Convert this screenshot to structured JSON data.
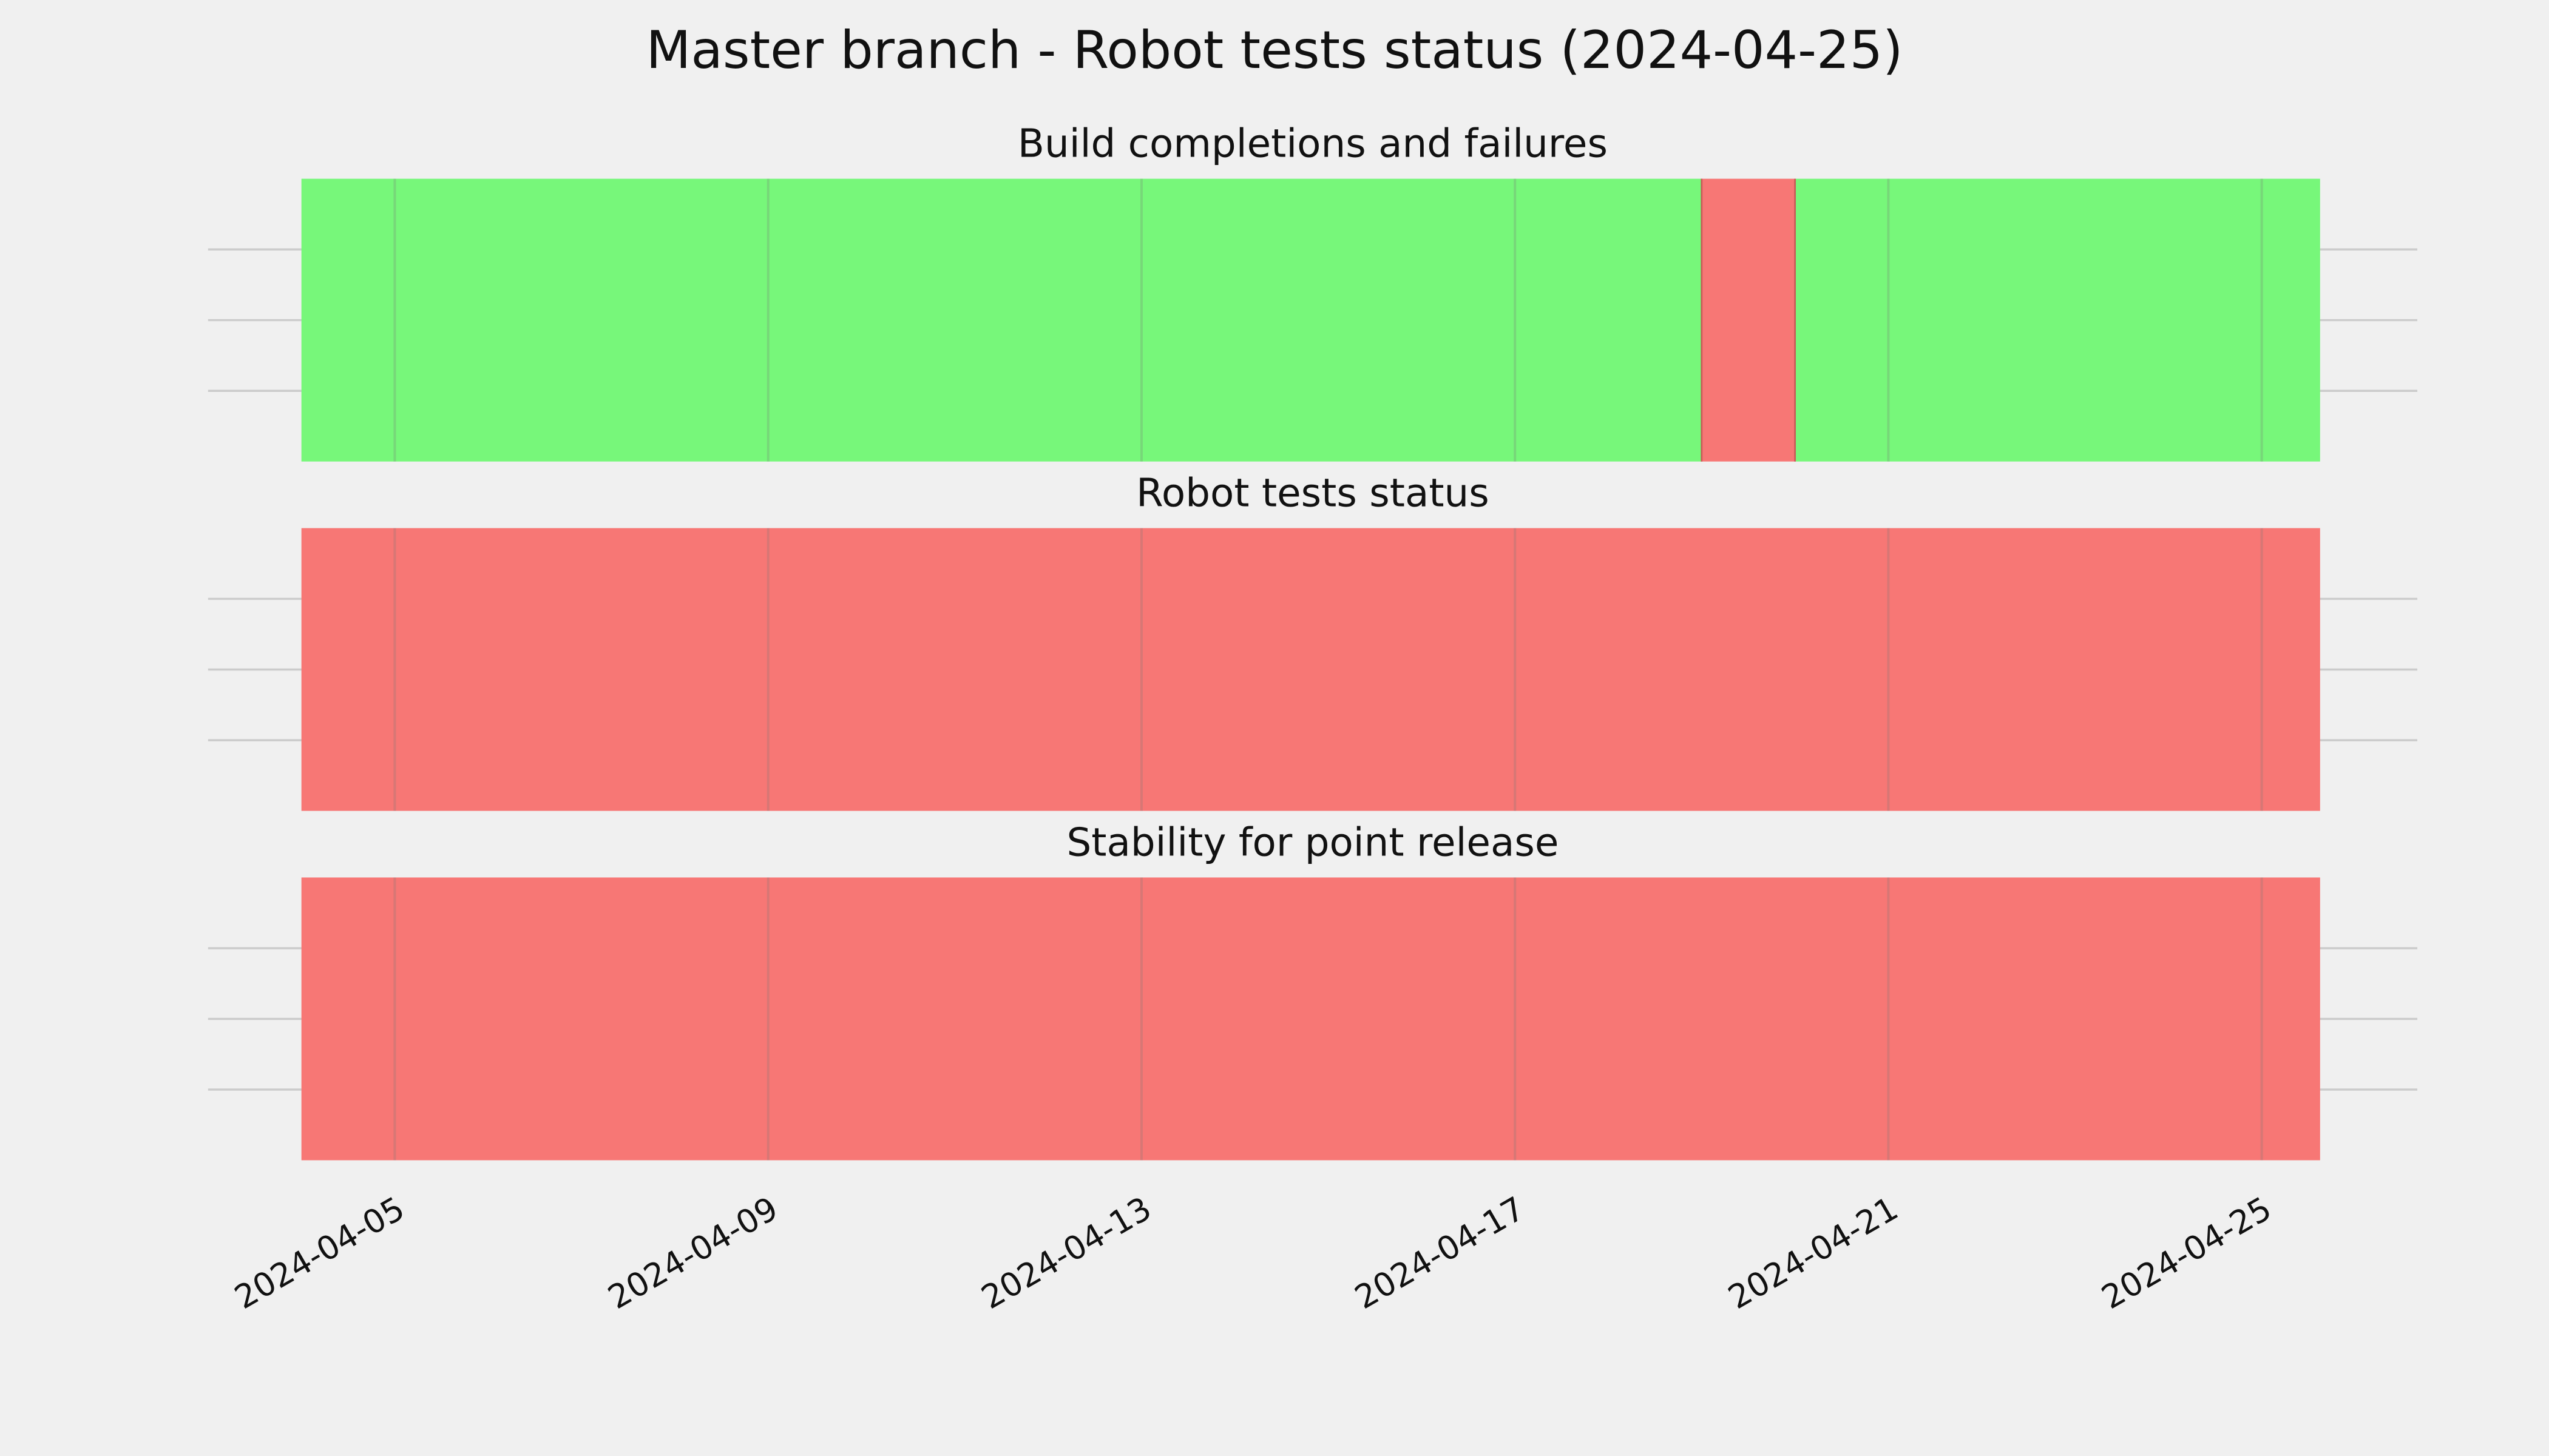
{
  "chart_data": {
    "type": "timeline",
    "title": "Master branch - Robot tests status (2024-04-25)",
    "xlim": [
      "2024-04-03",
      "2024-04-26T16:00"
    ],
    "xticks": [
      "2024-04-05",
      "2024-04-09",
      "2024-04-13",
      "2024-04-17",
      "2024-04-21",
      "2024-04-25"
    ],
    "ylim": [
      0,
      1
    ],
    "yticks": [
      0.25,
      0.5,
      0.75
    ],
    "grid": true,
    "panels": [
      {
        "subtitle": "Build completions and failures",
        "segments": [
          {
            "start": "2024-04-04",
            "end": "2024-04-19",
            "color": "#77f77a"
          },
          {
            "start": "2024-04-19",
            "end": "2024-04-20",
            "color": "#f77775"
          },
          {
            "start": "2024-04-20",
            "end": "2024-04-25T15:00",
            "color": "#77f77a"
          }
        ]
      },
      {
        "subtitle": "Robot tests status",
        "segments": [
          {
            "start": "2024-04-04",
            "end": "2024-04-25T15:00",
            "color": "#f77775"
          }
        ]
      },
      {
        "subtitle": "Stability for point release",
        "segments": [
          {
            "start": "2024-04-04",
            "end": "2024-04-25T15:00",
            "color": "#f77775"
          }
        ]
      }
    ]
  }
}
